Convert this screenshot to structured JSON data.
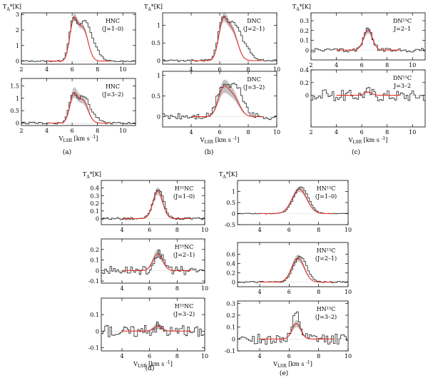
{
  "figure": {
    "group_labels": [
      "(a)",
      "(b)",
      "(c)",
      "(d)",
      "(e)"
    ],
    "y_axis_label": "T",
    "y_axis_sub": "A",
    "y_axis_unit": "*[K]",
    "x_axis_label": "V",
    "x_axis_sub": "LSR",
    "x_axis_unit": "[km s",
    "x_axis_unit_exp": "-1",
    "x_axis_unit_end": "]"
  },
  "chart_data": [
    {
      "id": "a1",
      "type": "line",
      "group": "a",
      "molecule": "HNC",
      "transition": "(J=1–0)",
      "xlim": [
        2,
        11
      ],
      "ylim": [
        -0.2,
        3.1
      ],
      "xticks": [
        2,
        4,
        6,
        8,
        10
      ],
      "yticks": [
        0,
        1,
        2,
        3
      ],
      "show_xlabel": false,
      "show_ylabel": true,
      "obs_peaks": [
        [
          6.05,
          2.35,
          0.3
        ],
        [
          6.9,
          2.2,
          0.45
        ],
        [
          7.6,
          0.9,
          0.5
        ]
      ],
      "model_peaks": [
        [
          6.1,
          2.4,
          0.3
        ],
        [
          6.85,
          2.1,
          0.4
        ]
      ],
      "noise": 0.04,
      "band": 0.2
    },
    {
      "id": "a2",
      "type": "line",
      "group": "a",
      "molecule": "HNC",
      "transition": "(J=3–2)",
      "xlim": [
        2,
        11
      ],
      "ylim": [
        -0.1,
        1.8
      ],
      "xticks": [
        2,
        4,
        6,
        8,
        10
      ],
      "yticks": [
        0,
        0.5,
        1,
        1.5
      ],
      "show_xlabel": true,
      "show_ylabel": false,
      "obs_peaks": [
        [
          6.05,
          1.1,
          0.3
        ],
        [
          6.9,
          1.05,
          0.4
        ],
        [
          7.7,
          0.25,
          0.4
        ]
      ],
      "model_peaks": [
        [
          6.1,
          1.05,
          0.3
        ],
        [
          6.85,
          0.9,
          0.4
        ]
      ],
      "noise": 0.04,
      "band": 0.18
    },
    {
      "id": "b1",
      "type": "line",
      "group": "b",
      "molecule": "DNC",
      "transition": "(J=2–1)",
      "xlim": [
        2,
        10
      ],
      "ylim": [
        -0.1,
        1.35
      ],
      "xticks": [
        4,
        6,
        8,
        10
      ],
      "yticks": [
        0,
        0.5,
        1
      ],
      "show_xlabel": false,
      "show_ylabel": true,
      "obs_peaks": [
        [
          6.15,
          0.95,
          0.3
        ],
        [
          6.9,
          0.95,
          0.45
        ],
        [
          7.7,
          0.35,
          0.5
        ]
      ],
      "model_peaks": [
        [
          6.2,
          0.95,
          0.3
        ],
        [
          6.85,
          0.85,
          0.4
        ]
      ],
      "noise": 0.03,
      "band": 0.1
    },
    {
      "id": "b2",
      "type": "line",
      "group": "b",
      "molecule": "DNC",
      "transition": "(J=3–2)",
      "xlim": [
        2,
        10
      ],
      "ylim": [
        -0.25,
        1.1
      ],
      "xticks": [
        4,
        6,
        8,
        10
      ],
      "yticks": [
        0,
        0.5,
        1
      ],
      "show_xlabel": true,
      "show_ylabel": false,
      "obs_peaks": [
        [
          6.1,
          0.55,
          0.35
        ],
        [
          6.9,
          0.65,
          0.5
        ],
        [
          7.5,
          0.25,
          0.4
        ]
      ],
      "model_peaks": [
        [
          6.2,
          0.55,
          0.35
        ],
        [
          6.9,
          0.5,
          0.45
        ]
      ],
      "noise": 0.08,
      "band": 0.12
    },
    {
      "id": "c1",
      "type": "line",
      "group": "c",
      "molecule": "DN¹³C",
      "transition": "J=2–1",
      "xlim": [
        2,
        11
      ],
      "ylim": [
        -0.1,
        0.38
      ],
      "xticks": [
        2,
        4,
        6,
        8,
        10
      ],
      "yticks": [
        0,
        0.1,
        0.2,
        0.3
      ],
      "show_xlabel": false,
      "show_ylabel": true,
      "obs_peaks": [
        [
          6.5,
          0.21,
          0.35
        ]
      ],
      "model_peaks": [
        [
          6.5,
          0.2,
          0.35
        ]
      ],
      "noise": 0.02,
      "band": 0.03
    },
    {
      "id": "c2",
      "type": "line",
      "group": "c",
      "molecule": "DN¹³C",
      "transition": "J=3–2",
      "xlim": [
        2,
        11
      ],
      "ylim": [
        -0.5,
        0.4
      ],
      "xticks": [
        2,
        4,
        6,
        8,
        10
      ],
      "yticks": [
        0,
        0.2,
        0.4
      ],
      "show_xlabel": true,
      "show_ylabel": false,
      "obs_peaks": [
        [
          6.5,
          0.06,
          0.3
        ]
      ],
      "model_peaks": [
        [
          6.5,
          0.05,
          0.3
        ]
      ],
      "noise": 0.09,
      "band": 0.01
    },
    {
      "id": "d1",
      "type": "line",
      "group": "d",
      "molecule": "H¹⁵NC",
      "transition": "(J=1–0)",
      "xlim": [
        2.5,
        10
      ],
      "ylim": [
        -0.08,
        0.5
      ],
      "xticks": [
        4,
        6,
        8,
        10
      ],
      "yticks": [
        0,
        0.1,
        0.2,
        0.3,
        0.4
      ],
      "show_xlabel": false,
      "show_ylabel": true,
      "obs_peaks": [
        [
          6.65,
          0.38,
          0.38
        ]
      ],
      "model_peaks": [
        [
          6.6,
          0.36,
          0.35
        ]
      ],
      "noise": 0.015,
      "band": 0.05
    },
    {
      "id": "d2",
      "type": "line",
      "group": "d",
      "molecule": "H¹⁵NC",
      "transition": "(J=2–1)",
      "xlim": [
        2.5,
        10
      ],
      "ylim": [
        -0.12,
        0.3
      ],
      "xticks": [
        4,
        6,
        8,
        10
      ],
      "yticks": [
        -0.1,
        0,
        0.1,
        0.2
      ],
      "show_xlabel": false,
      "show_ylabel": false,
      "obs_peaks": [
        [
          6.7,
          0.16,
          0.35
        ]
      ],
      "model_peaks": [
        [
          6.6,
          0.16,
          0.35
        ]
      ],
      "noise": 0.04,
      "band": 0.04
    },
    {
      "id": "d3",
      "type": "line",
      "group": "d",
      "molecule": "H¹⁵NC",
      "transition": "(J=3–2)",
      "xlim": [
        2.5,
        10
      ],
      "ylim": [
        -0.12,
        0.2
      ],
      "xticks": [
        4,
        6,
        8,
        10
      ],
      "yticks": [
        -0.1,
        0,
        0.1
      ],
      "show_xlabel": true,
      "show_ylabel": false,
      "obs_peaks": [
        [
          6.6,
          0.03,
          0.3
        ]
      ],
      "model_peaks": [
        [
          6.6,
          0.03,
          0.3
        ]
      ],
      "noise": 0.035,
      "band": 0.02
    },
    {
      "id": "e1",
      "type": "line",
      "group": "e",
      "molecule": "HN¹³C",
      "transition": "(J=1–0)",
      "xlim": [
        2.5,
        10
      ],
      "ylim": [
        -0.5,
        1.5
      ],
      "xticks": [
        4,
        6,
        8,
        10
      ],
      "yticks": [
        -0.5,
        0,
        0.5,
        1
      ],
      "show_xlabel": false,
      "show_ylabel": true,
      "obs_peaks": [
        [
          6.8,
          1.2,
          0.5
        ]
      ],
      "model_peaks": [
        [
          6.7,
          1.1,
          0.5
        ]
      ],
      "noise": 0.02,
      "band": 0.12
    },
    {
      "id": "e2",
      "type": "line",
      "group": "e",
      "molecule": "HN¹³C",
      "transition": "(J=2–1)",
      "xlim": [
        2.5,
        10
      ],
      "ylim": [
        -0.1,
        0.85
      ],
      "xticks": [
        4,
        6,
        8,
        10
      ],
      "yticks": [
        0,
        0.2,
        0.4,
        0.6
      ],
      "show_xlabel": false,
      "show_ylabel": false,
      "obs_peaks": [
        [
          6.75,
          0.55,
          0.45
        ]
      ],
      "model_peaks": [
        [
          6.6,
          0.52,
          0.42
        ]
      ],
      "noise": 0.015,
      "band": 0.07
    },
    {
      "id": "e3",
      "type": "line",
      "group": "e",
      "molecule": "HN¹³C",
      "transition": "(J=3–2)",
      "xlim": [
        2.5,
        10
      ],
      "ylim": [
        -0.1,
        0.32
      ],
      "xticks": [
        4,
        6,
        8,
        10
      ],
      "yticks": [
        -0.1,
        0,
        0.1,
        0.2,
        0.3
      ],
      "show_xlabel": true,
      "show_ylabel": false,
      "obs_peaks": [
        [
          6.5,
          0.2,
          0.25
        ]
      ],
      "model_peaks": [
        [
          6.5,
          0.13,
          0.3
        ]
      ],
      "noise": 0.045,
      "band": 0.03
    }
  ]
}
